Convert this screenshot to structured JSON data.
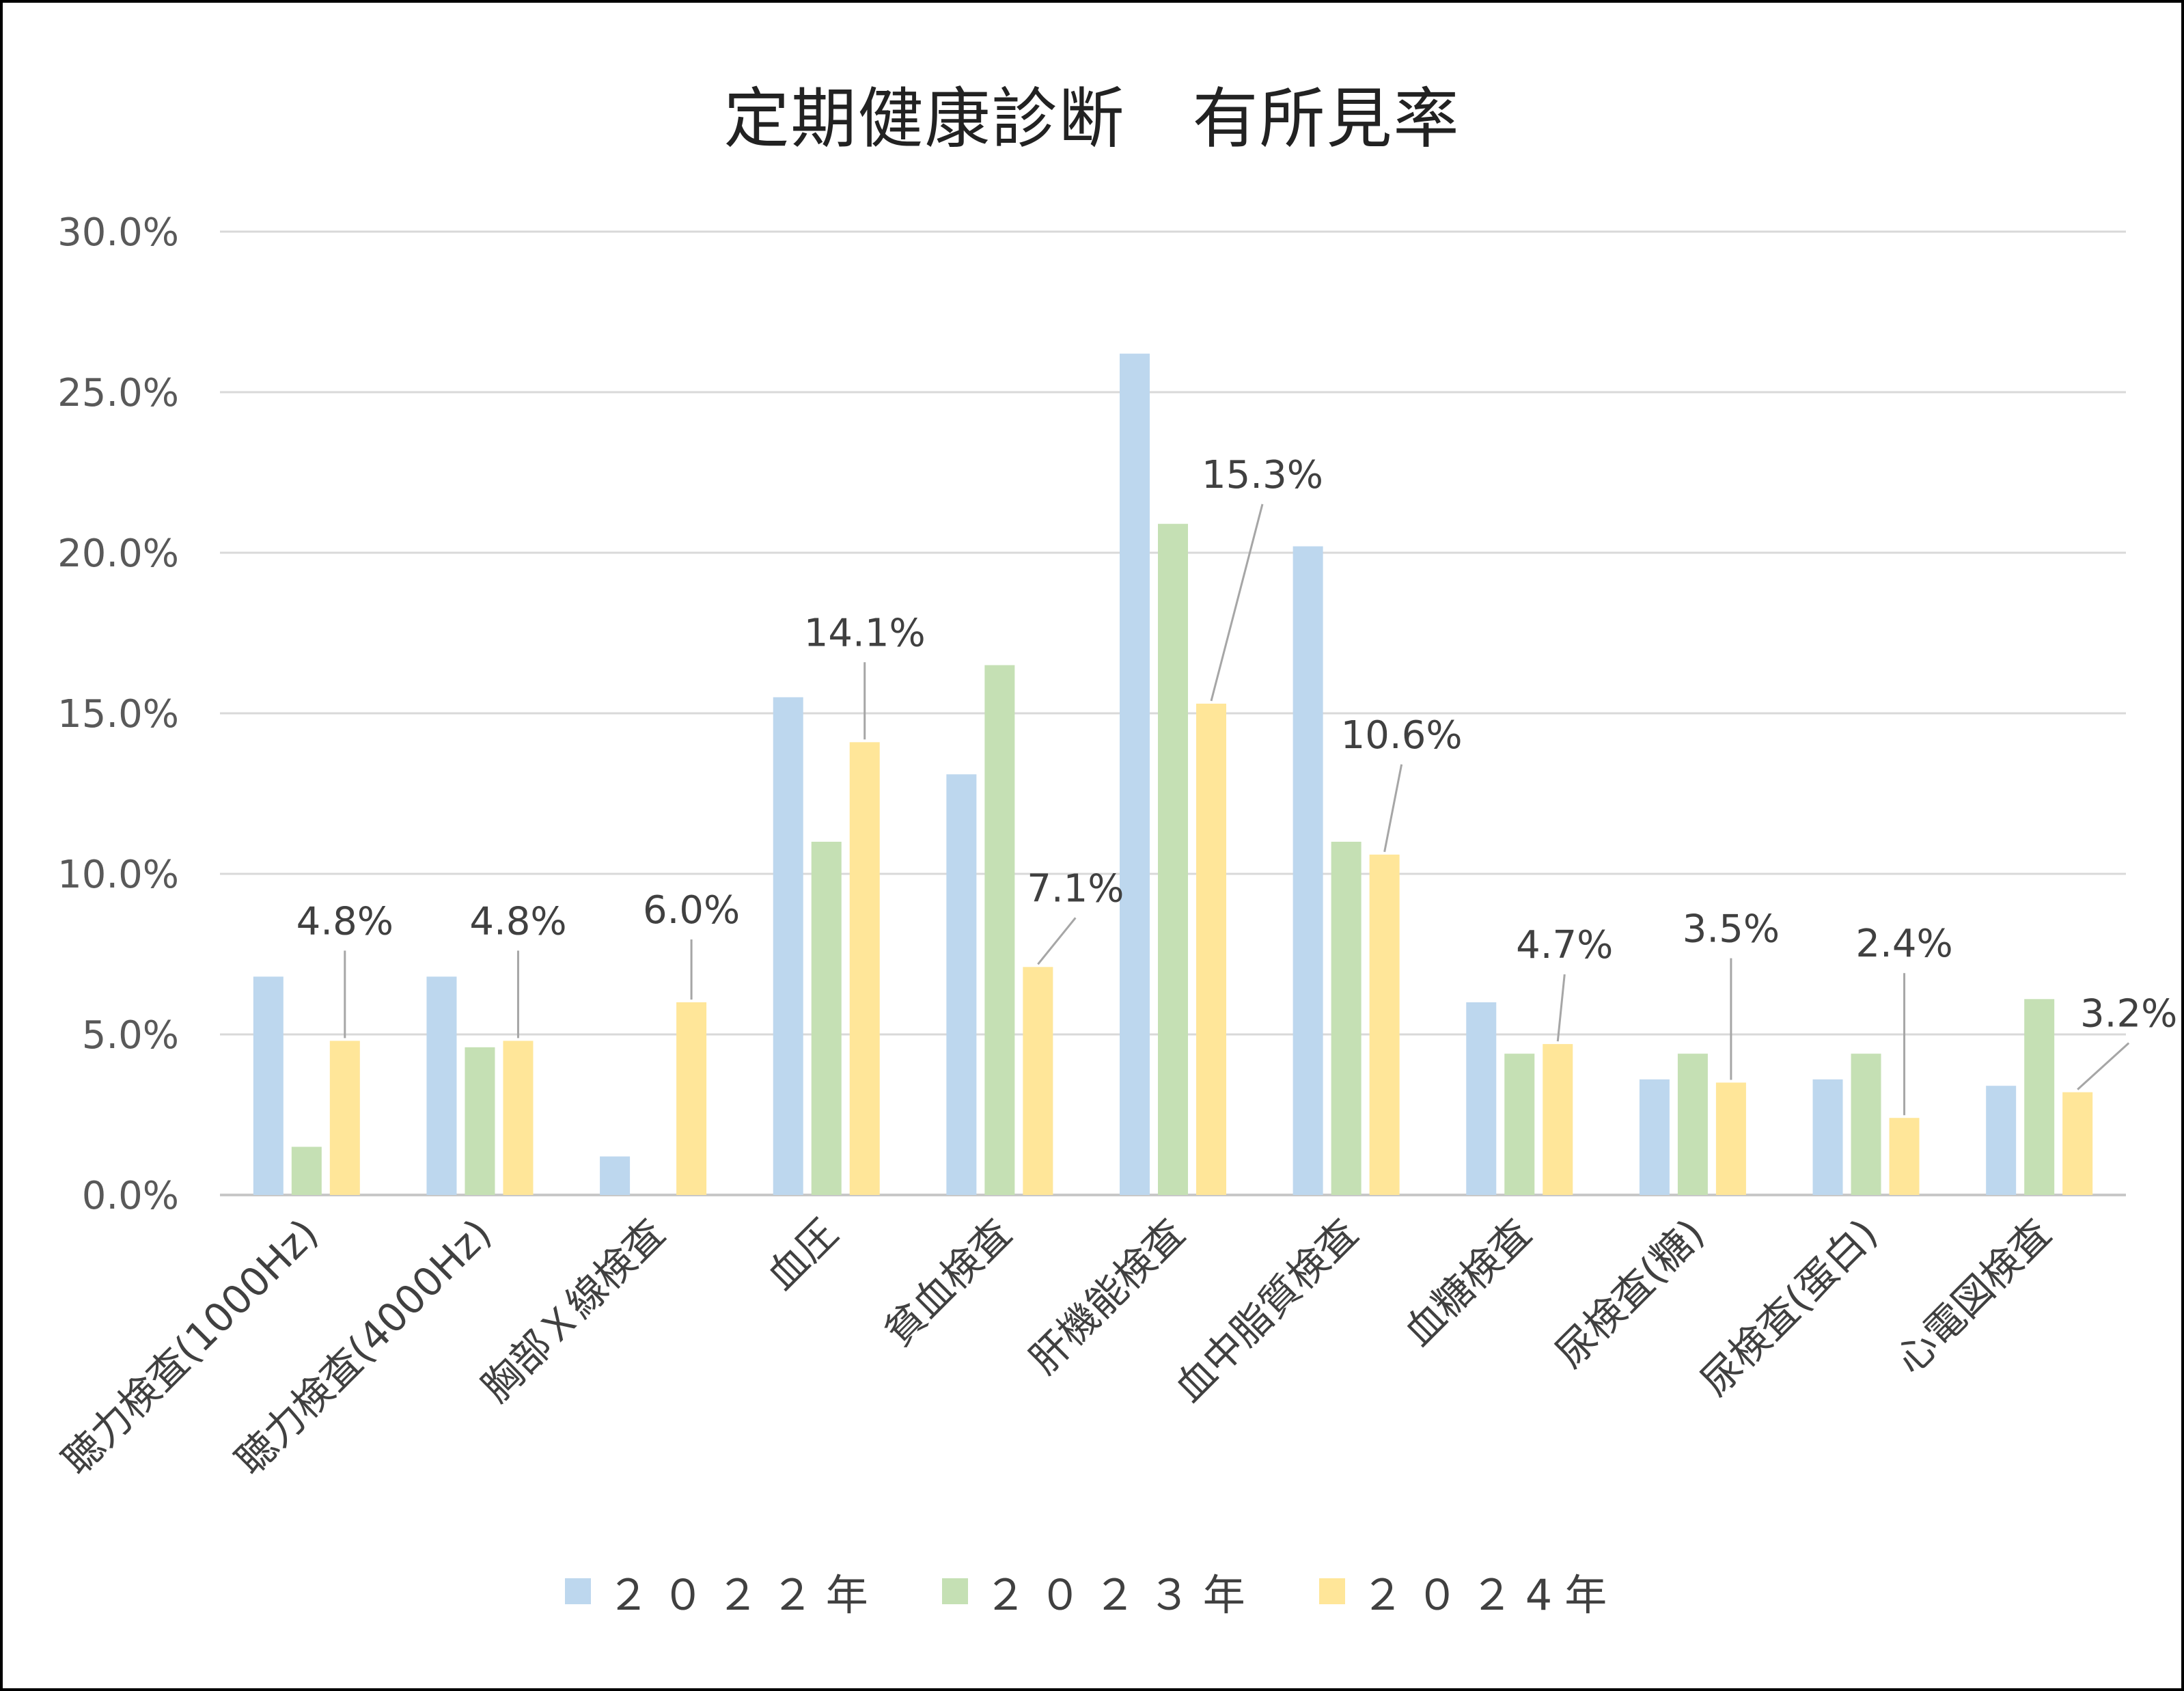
{
  "chart_data": {
    "type": "bar",
    "title": "定期健康診断　有所見率",
    "xlabel": "",
    "ylabel": "",
    "ylim": [
      0,
      30
    ],
    "yticks": [
      "0.0%",
      "5.0%",
      "10.0%",
      "15.0%",
      "20.0%",
      "25.0%",
      "30.0%"
    ],
    "grid": true,
    "legend_position": "bottom",
    "categories": [
      "聴力検査(1000Hz)",
      "聴力検査(4000Hz)",
      "胸部Ｘ線検査",
      "血圧",
      "貧血検査",
      "肝機能検査",
      "血中脂質検査",
      "血糖検査",
      "尿検査(糖)",
      "尿検査(蛋白)",
      "心電図検査"
    ],
    "series": [
      {
        "name": "２０２２年",
        "color": "#BDD7EE",
        "values": [
          6.8,
          6.8,
          1.2,
          15.5,
          13.1,
          26.2,
          20.2,
          6.0,
          3.6,
          3.6,
          3.4
        ]
      },
      {
        "name": "２０２３年",
        "color": "#C5E0B4",
        "values": [
          1.5,
          4.6,
          0.0,
          11.0,
          16.5,
          20.9,
          11.0,
          4.4,
          4.4,
          4.4,
          6.1
        ]
      },
      {
        "name": "２０２4年",
        "color": "#FFE699",
        "values": [
          4.8,
          4.8,
          6.0,
          14.1,
          7.1,
          15.3,
          10.6,
          4.7,
          3.5,
          2.4,
          3.2
        ]
      }
    ],
    "data_labels": [
      "4.8%",
      "4.8%",
      "6.0%",
      "14.1%",
      "7.1%",
      "15.3%",
      "10.6%",
      "4.7%",
      "3.5%",
      "2.4%",
      "3.2%"
    ]
  }
}
